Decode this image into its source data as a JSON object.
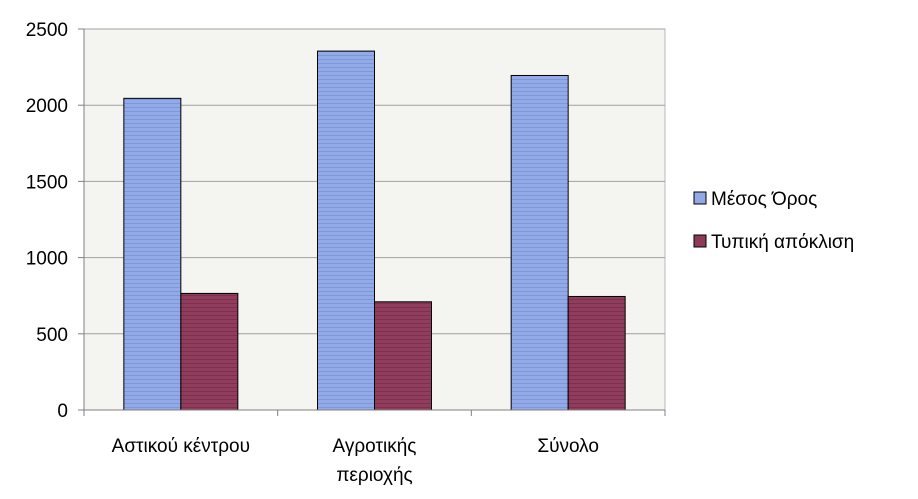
{
  "chart_data": {
    "type": "bar",
    "categories": [
      [
        "Αστικού κέντρου"
      ],
      [
        "Αγροτικής",
        "περιοχής"
      ],
      [
        "Σύνολο"
      ]
    ],
    "series": [
      {
        "name": "Μέσος Όρος",
        "values": [
          2045,
          2355,
          2195
        ],
        "color": "#92a9e6"
      },
      {
        "name": "Τυπική απόκλιση",
        "values": [
          765,
          710,
          745
        ],
        "color": "#8e3b5a"
      }
    ],
    "ylim": [
      0,
      2500
    ],
    "yticks": [
      0,
      500,
      1000,
      1500,
      2000,
      2500
    ],
    "grid": true,
    "legend": "right"
  }
}
